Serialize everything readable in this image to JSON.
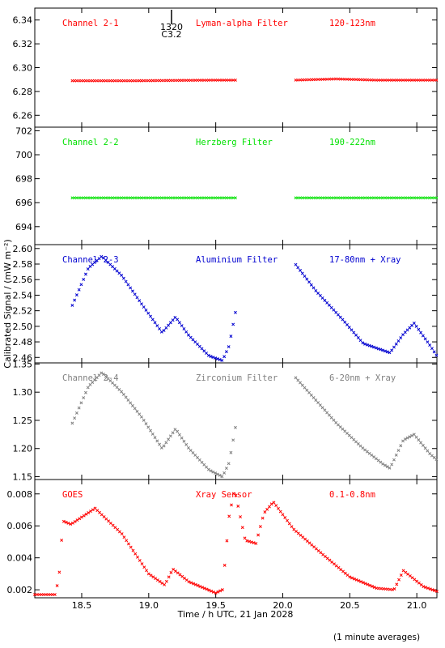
{
  "x_axis": {
    "label": "Time / h UTC, 21 Jan 2028",
    "range": [
      18.15,
      21.15
    ],
    "ticks": [
      "18.5",
      "19.0",
      "19.5",
      "20.0",
      "20.5",
      "21.0"
    ]
  },
  "y_axis_label": "Calibrated Signal / (mW m⁻²)",
  "footnote": "(1 minute averages)",
  "flare_marker": {
    "time": 19.17,
    "label_time": "1320",
    "label_class": "C3.2"
  },
  "chart_data": [
    {
      "type": "scatter",
      "channel": "Channel 2-1",
      "filter": "Lyman-alpha Filter",
      "band": "120-123nm",
      "color": "#ff0000",
      "ylim": [
        6.25,
        6.35
      ],
      "yticks": [
        "6.34",
        "6.32",
        "6.30",
        "6.28",
        "6.26"
      ],
      "curve": [
        [
          18.43,
          6.289
        ],
        [
          18.9,
          6.289
        ],
        [
          19.5,
          6.2895
        ],
        [
          19.66,
          6.2895
        ],
        [
          20.08,
          6.2895
        ],
        [
          20.4,
          6.2905
        ],
        [
          20.7,
          6.2895
        ],
        [
          21.15,
          6.2895
        ]
      ],
      "gaps": [
        [
          19.66,
          20.08
        ]
      ]
    },
    {
      "type": "scatter",
      "channel": "Channel 2-2",
      "filter": "Herzberg Filter",
      "band": "190-222nm",
      "color": "#00e000",
      "ylim": [
        692.5,
        702.3
      ],
      "yticks": [
        "702",
        "700",
        "698",
        "696",
        "694"
      ],
      "curve": [
        [
          18.43,
          696.4
        ],
        [
          19.66,
          696.4
        ],
        [
          20.08,
          696.4
        ],
        [
          21.15,
          696.4
        ]
      ],
      "gaps": [
        [
          19.66,
          20.08
        ]
      ]
    },
    {
      "type": "scatter",
      "channel": "Channel 2-3",
      "filter": "Aluminium Filter",
      "band": "17-80nm + Xray",
      "color": "#0000d0",
      "ylim": [
        2.453,
        2.605
      ],
      "yticks": [
        "2.60",
        "2.58",
        "2.56",
        "2.54",
        "2.52",
        "2.50",
        "2.48",
        "2.46"
      ],
      "curve": [
        [
          18.43,
          2.527
        ],
        [
          18.55,
          2.575
        ],
        [
          18.65,
          2.59
        ],
        [
          18.8,
          2.565
        ],
        [
          18.95,
          2.528
        ],
        [
          19.1,
          2.492
        ],
        [
          19.2,
          2.512
        ],
        [
          19.3,
          2.488
        ],
        [
          19.45,
          2.462
        ],
        [
          19.55,
          2.456
        ],
        [
          19.6,
          2.475
        ],
        [
          19.66,
          2.53
        ],
        [
          20.08,
          2.583
        ],
        [
          20.25,
          2.545
        ],
        [
          20.45,
          2.508
        ],
        [
          20.6,
          2.478
        ],
        [
          20.8,
          2.466
        ],
        [
          20.9,
          2.49
        ],
        [
          20.98,
          2.504
        ],
        [
          21.1,
          2.475
        ],
        [
          21.15,
          2.462
        ]
      ],
      "gaps": [
        [
          19.66,
          20.08
        ]
      ]
    },
    {
      "type": "scatter",
      "channel": "Channel 2-4",
      "filter": "Zirconium Filter",
      "band": "6-20nm + Xray",
      "color": "#808080",
      "ylim": [
        1.145,
        1.352
      ],
      "yticks": [
        "1.35",
        "1.30",
        "1.25",
        "1.20",
        "1.15"
      ],
      "curve": [
        [
          18.43,
          1.245
        ],
        [
          18.55,
          1.31
        ],
        [
          18.65,
          1.335
        ],
        [
          18.8,
          1.3
        ],
        [
          18.95,
          1.255
        ],
        [
          19.1,
          1.2
        ],
        [
          19.2,
          1.235
        ],
        [
          19.3,
          1.2
        ],
        [
          19.45,
          1.162
        ],
        [
          19.55,
          1.15
        ],
        [
          19.6,
          1.175
        ],
        [
          19.66,
          1.255
        ],
        [
          20.08,
          1.33
        ],
        [
          20.25,
          1.285
        ],
        [
          20.4,
          1.245
        ],
        [
          20.6,
          1.2
        ],
        [
          20.75,
          1.172
        ],
        [
          20.8,
          1.165
        ],
        [
          20.9,
          1.215
        ],
        [
          20.98,
          1.225
        ],
        [
          21.1,
          1.19
        ],
        [
          21.15,
          1.18
        ]
      ],
      "gaps": [
        [
          19.66,
          20.08
        ]
      ]
    },
    {
      "type": "scatter",
      "channel": "GOES",
      "filter": "Xray Sensor",
      "band": "0.1-0.8nm",
      "color": "#ff0000",
      "ylim": [
        0.0015,
        0.0089
      ],
      "yticks": [
        "0.008",
        "0.006",
        "0.004",
        "0.002"
      ],
      "curve": [
        [
          18.15,
          0.0017
        ],
        [
          18.3,
          0.0017
        ],
        [
          18.33,
          0.0027
        ],
        [
          18.36,
          0.0063
        ],
        [
          18.42,
          0.0061
        ],
        [
          18.6,
          0.0071
        ],
        [
          18.8,
          0.0055
        ],
        [
          19.0,
          0.003
        ],
        [
          19.12,
          0.0023
        ],
        [
          19.18,
          0.0033
        ],
        [
          19.3,
          0.0025
        ],
        [
          19.5,
          0.0018
        ],
        [
          19.55,
          0.002
        ],
        [
          19.6,
          0.0066
        ],
        [
          19.64,
          0.0083
        ],
        [
          19.72,
          0.0051
        ],
        [
          19.8,
          0.0049
        ],
        [
          19.86,
          0.0068
        ],
        [
          19.93,
          0.0075
        ],
        [
          20.08,
          0.0058
        ],
        [
          20.3,
          0.0042
        ],
        [
          20.5,
          0.0028
        ],
        [
          20.7,
          0.0021
        ],
        [
          20.83,
          0.002
        ],
        [
          20.9,
          0.0032
        ],
        [
          21.05,
          0.0022
        ],
        [
          21.15,
          0.0019
        ]
      ],
      "gaps": []
    }
  ]
}
